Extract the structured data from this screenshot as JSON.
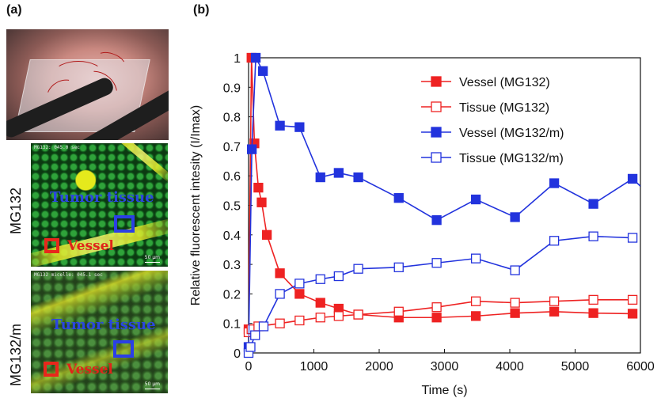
{
  "panels": {
    "a_label": "(a)",
    "b_label": "(b)",
    "row1_label": "MG132",
    "row2_label": "MG132/m",
    "micro1": {
      "caption": "MG132: 045.0 sec",
      "tumor_text": "Tumor tissue",
      "vessel_text": "Vessel",
      "scale": "50 μm"
    },
    "micro2": {
      "caption": "MG132 micelle: 045.1 sec",
      "tumor_text": "Tumor tissue",
      "vessel_text": "Vessel",
      "scale": "50 μm"
    }
  },
  "chart_data": {
    "type": "line",
    "xlabel": "Time (s)",
    "ylabel": "Relative fluorescent intesity (I/Imax)",
    "xlim": [
      0,
      6000
    ],
    "ylim": [
      0,
      1
    ],
    "xticks": [
      0,
      1000,
      2000,
      3000,
      4000,
      5000,
      6000
    ],
    "yticks": [
      0,
      0.1,
      0.2,
      0.3,
      0.4,
      0.5,
      0.6,
      0.7,
      0.8,
      0.9,
      1
    ],
    "legend_position": "top-right",
    "grid": false,
    "series": [
      {
        "name": "Vessel (MG132)",
        "color": "#ee2222",
        "marker": "filled-square",
        "x": [
          0,
          45,
          90,
          150,
          200,
          280,
          480,
          780,
          1100,
          1380,
          1680,
          2300,
          2880,
          3480,
          4080,
          4680,
          5280,
          5880
        ],
        "y": [
          0.08,
          1.0,
          0.71,
          0.56,
          0.51,
          0.4,
          0.27,
          0.2,
          0.17,
          0.15,
          0.13,
          0.12,
          0.12,
          0.125,
          0.135,
          0.14,
          0.135,
          0.133
        ]
      },
      {
        "name": "Tissue (MG132)",
        "color": "#ee2222",
        "marker": "open-square",
        "x": [
          0,
          45,
          150,
          480,
          780,
          1100,
          1380,
          1680,
          2300,
          2880,
          3480,
          4080,
          4680,
          5280,
          5880
        ],
        "y": [
          0.07,
          0.08,
          0.09,
          0.1,
          0.11,
          0.12,
          0.125,
          0.13,
          0.14,
          0.155,
          0.175,
          0.17,
          0.175,
          0.18,
          0.18
        ]
      },
      {
        "name": "Vessel (MG132/m)",
        "color": "#2233dd",
        "marker": "filled-square",
        "x": [
          0,
          50,
          110,
          220,
          480,
          780,
          1100,
          1380,
          1680,
          2300,
          2880,
          3480,
          4080,
          4680,
          5280,
          5880,
          6000
        ],
        "y": [
          0.02,
          0.69,
          1.0,
          0.955,
          0.77,
          0.765,
          0.595,
          0.61,
          0.595,
          0.525,
          0.45,
          0.52,
          0.46,
          0.575,
          0.505,
          0.59,
          0.565
        ]
      },
      {
        "name": "Tissue (MG132/m)",
        "color": "#2233dd",
        "marker": "open-square",
        "x": [
          0,
          30,
          100,
          230,
          480,
          780,
          1100,
          1380,
          1680,
          2300,
          2880,
          3480,
          4080,
          4680,
          5280,
          5880
        ],
        "y": [
          0.0,
          0.02,
          0.06,
          0.09,
          0.2,
          0.235,
          0.25,
          0.26,
          0.285,
          0.29,
          0.305,
          0.32,
          0.28,
          0.38,
          0.395,
          0.39
        ]
      }
    ]
  }
}
